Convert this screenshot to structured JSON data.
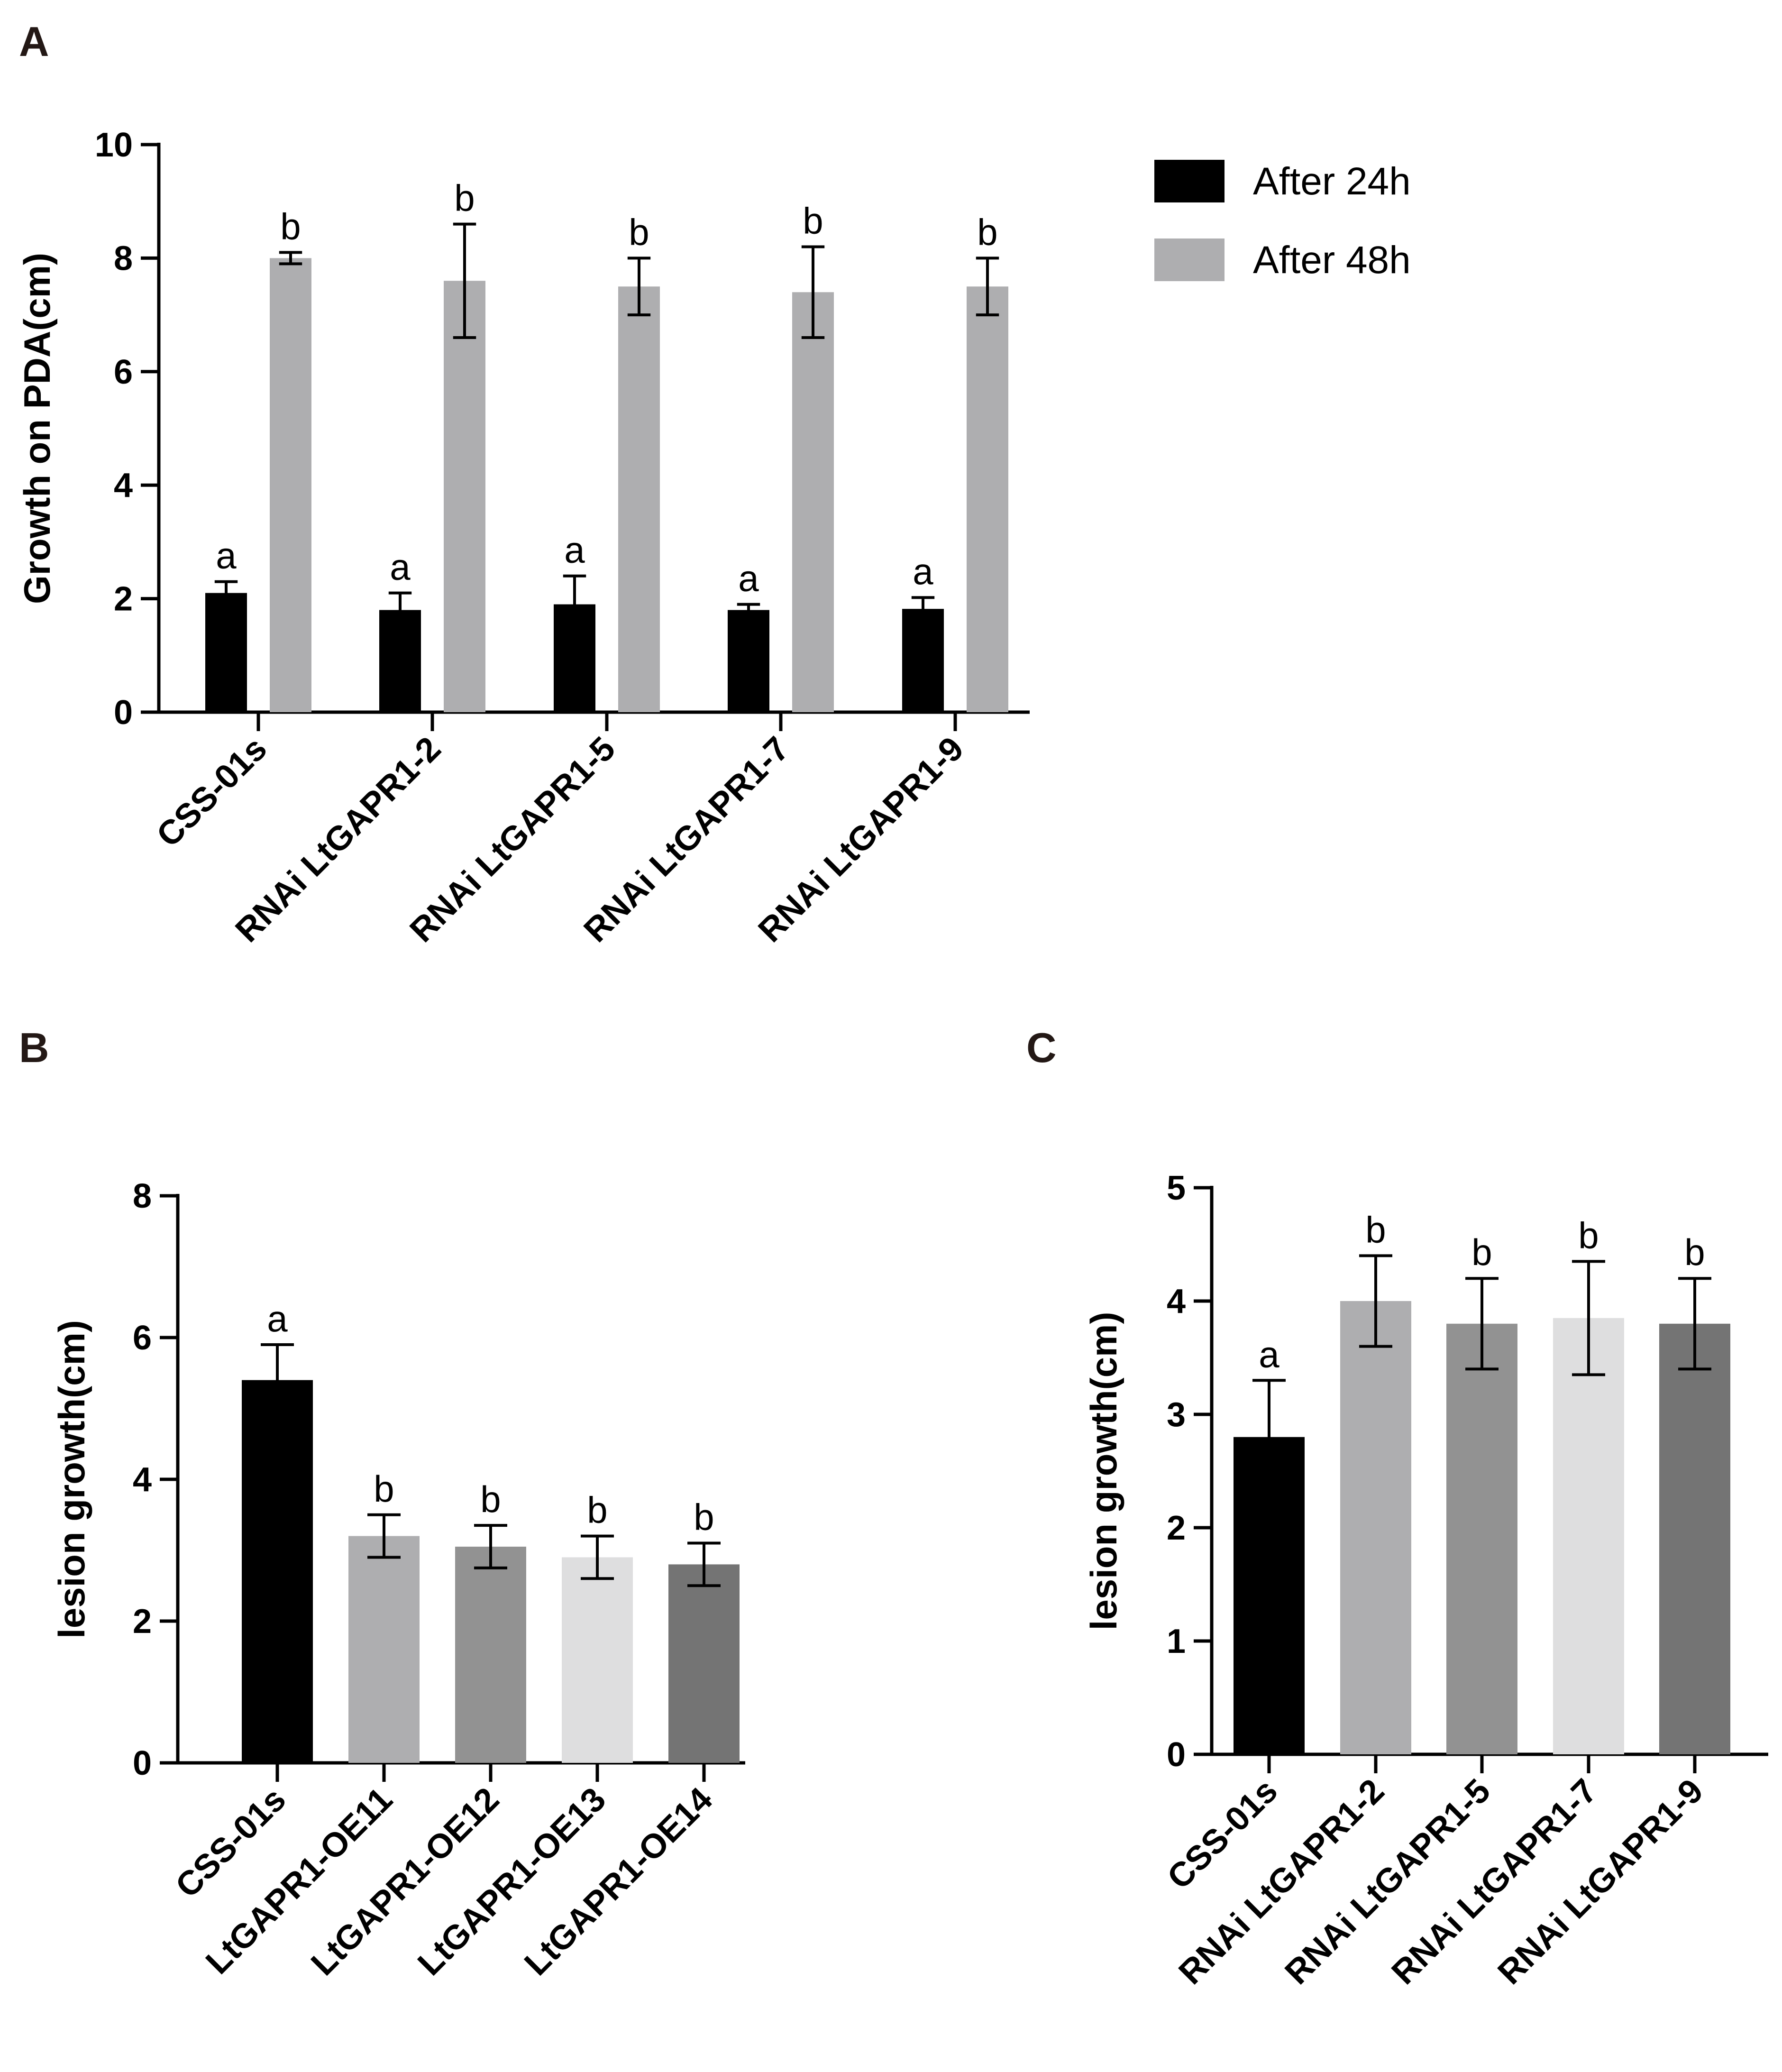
{
  "chart_data": [
    {
      "id": "A",
      "panel_label": "A",
      "type": "bar",
      "ylabel": "Growth on PDA(cm)",
      "ylim": [
        0,
        10
      ],
      "yticks": [
        "0",
        "2",
        "4",
        "6",
        "8",
        "10"
      ],
      "categories": [
        "CSS-01s",
        "RNAi LtGAPR1-2",
        "RNAi LtGAPR1-5",
        "RNAi LtGAPR1-7",
        "RNAi LtGAPR1-9"
      ],
      "series": [
        {
          "name": "After 24h",
          "color": "#000000",
          "values": [
            2.1,
            1.8,
            1.9,
            1.8,
            1.82
          ],
          "errors": [
            0.2,
            0.3,
            0.5,
            0.1,
            0.2
          ],
          "labels": [
            "a",
            "a",
            "a",
            "a",
            "a"
          ]
        },
        {
          "name": "After 48h",
          "color": "#aeaeb0",
          "values": [
            8.0,
            7.6,
            7.5,
            7.4,
            7.5
          ],
          "errors": [
            0.1,
            1.0,
            0.5,
            0.8,
            0.5
          ],
          "labels": [
            "b",
            "b",
            "b",
            "b",
            "b"
          ]
        }
      ],
      "legend": [
        "After 24h",
        "After 48h"
      ]
    },
    {
      "id": "B",
      "panel_label": "B",
      "type": "bar",
      "ylabel": "lesion growth(cm)",
      "ylim": [
        0,
        8
      ],
      "yticks": [
        "0",
        "2",
        "4",
        "6",
        "8"
      ],
      "categories": [
        "CSS-01s",
        "LtGAPR1-OE11",
        "LtGAPR1-OE12",
        "LtGAPR1-OE13",
        "LtGAPR1-OE14"
      ],
      "values": [
        5.4,
        3.2,
        3.05,
        2.9,
        2.8
      ],
      "errors": [
        0.5,
        0.3,
        0.3,
        0.3,
        0.3
      ],
      "colors": [
        "#000000",
        "#aeaeb0",
        "#929292",
        "#dededf",
        "#747474"
      ],
      "labels": [
        "a",
        "b",
        "b",
        "b",
        "b"
      ]
    },
    {
      "id": "C",
      "panel_label": "C",
      "type": "bar",
      "ylabel": "lesion growth(cm)",
      "ylim": [
        0,
        5
      ],
      "yticks": [
        "0",
        "1",
        "2",
        "3",
        "4",
        "5"
      ],
      "categories": [
        "CSS-01s",
        "RNAi LtGAPR1-2",
        "RNAi LtGAPR1-5",
        "RNAi LtGAPR1-7",
        "RNAi LtGAPR1-9"
      ],
      "values": [
        2.8,
        4.0,
        3.8,
        3.85,
        3.8
      ],
      "errors": [
        0.5,
        0.4,
        0.4,
        0.5,
        0.4
      ],
      "colors": [
        "#000000",
        "#aeaeb0",
        "#929292",
        "#dededf",
        "#747474"
      ],
      "labels": [
        "a",
        "b",
        "b",
        "b",
        "b"
      ]
    }
  ]
}
